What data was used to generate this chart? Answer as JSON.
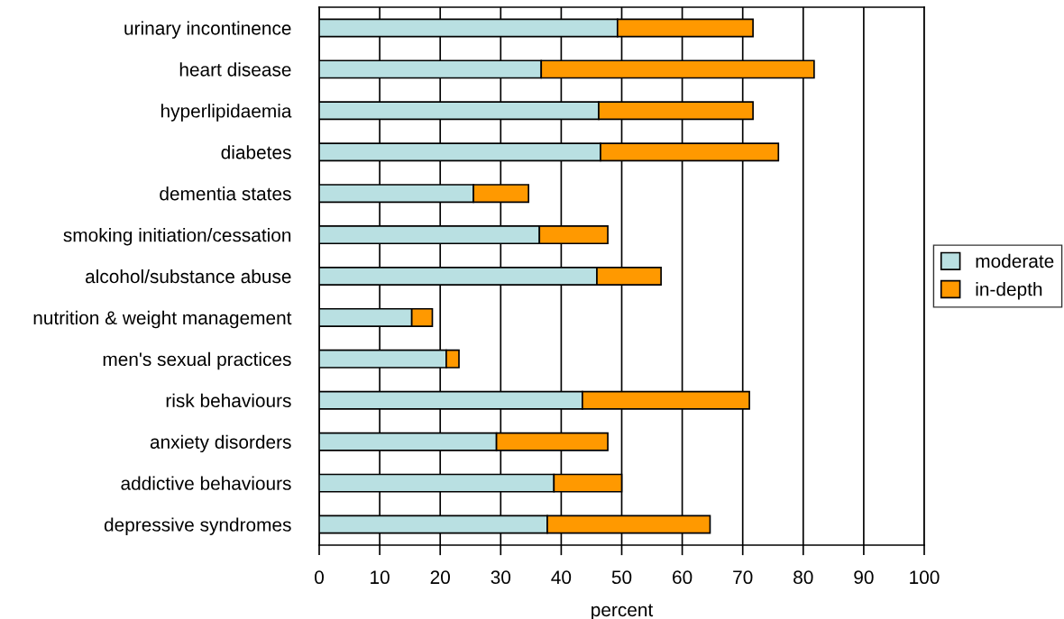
{
  "chart_data": {
    "type": "bar",
    "orientation": "horizontal",
    "stacked": true,
    "xlabel": "percent",
    "categories": [
      "urinary incontinence",
      "heart disease",
      "hyperlipidaemia",
      "diabetes",
      "dementia states",
      "smoking initiation/cessation",
      "alcohol/substance abuse",
      "nutrition & weight management",
      "men's sexual practices",
      "risk behaviours",
      "anxiety disorders",
      "addictive behaviours",
      "depressive syndromes"
    ],
    "series": [
      {
        "name": "moderate",
        "color": "#b9e0e2",
        "values": [
          49.3,
          36.7,
          46.2,
          46.5,
          25.5,
          36.4,
          45.9,
          15.3,
          21.0,
          43.5,
          29.3,
          38.8,
          37.7
        ]
      },
      {
        "name": "in-depth",
        "color": "#ff9900",
        "values": [
          22.4,
          45.1,
          25.5,
          29.4,
          9.1,
          11.3,
          10.6,
          3.4,
          2.1,
          27.6,
          18.4,
          11.2,
          26.9
        ]
      }
    ],
    "xlim": [
      0,
      100
    ],
    "xticks": [
      0,
      10,
      20,
      30,
      40,
      50,
      60,
      70,
      80,
      90,
      100
    ],
    "grid": "x",
    "legend": "right"
  }
}
